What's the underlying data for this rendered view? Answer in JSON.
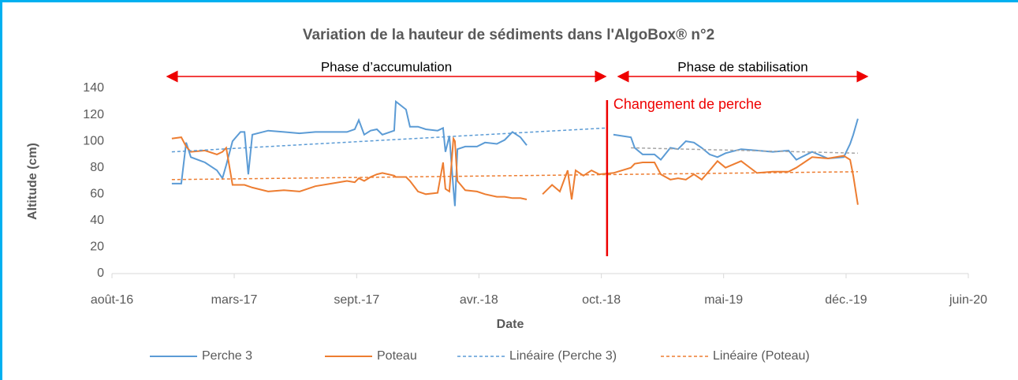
{
  "chart_data": {
    "type": "line",
    "title": "Variation de la hauteur de sédiments dans l'AlgoBox® n°2",
    "x_label": "Date",
    "y_label": "Altitude (cm)",
    "xlim": [
      2016.583,
      2020.646
    ],
    "xticks": [
      {
        "value": 2016.583,
        "label": "août-16"
      },
      {
        "value": 2017.163,
        "label": "mars-17"
      },
      {
        "value": 2017.744,
        "label": "sept.-17"
      },
      {
        "value": 2018.324,
        "label": "avr.-18"
      },
      {
        "value": 2018.905,
        "label": "oct.-18"
      },
      {
        "value": 2019.485,
        "label": "mai-19"
      },
      {
        "value": 2020.066,
        "label": "déc.-19"
      },
      {
        "value": 2020.646,
        "label": "juin-20"
      }
    ],
    "ylim": [
      0,
      140
    ],
    "yticks": [
      0,
      20,
      40,
      60,
      80,
      100,
      120,
      140
    ],
    "x": [
      2016.867,
      2016.912,
      2016.935,
      2016.957,
      2017.024,
      2017.081,
      2017.107,
      2017.125,
      2017.155,
      2017.193,
      2017.212,
      2017.23,
      2017.249,
      2017.324,
      2017.399,
      2017.473,
      2017.548,
      2017.623,
      2017.698,
      2017.735,
      2017.754,
      2017.78,
      2017.81,
      2017.84,
      2017.866,
      2017.922,
      2017.93,
      2017.978,
      2017.997,
      2018.035,
      2018.072,
      2018.128,
      2018.154,
      2018.165,
      2018.184,
      2018.203,
      2018.21,
      2018.222,
      2018.259,
      2018.315,
      2018.353,
      2018.409,
      2018.446,
      2018.483,
      2018.521,
      2018.551,
      2018.588,
      2018.626,
      2018.671,
      2018.708,
      2018.745,
      2018.764,
      2018.783,
      2018.82,
      2018.858,
      2018.895,
      2018.962,
      2019.045,
      2019.063,
      2019.101,
      2019.157,
      2019.187,
      2019.232,
      2019.269,
      2019.306,
      2019.344,
      2019.381,
      2019.419,
      2019.456,
      2019.494,
      2019.568,
      2019.643,
      2019.718,
      2019.793,
      2019.83,
      2019.905,
      2019.98,
      2020.055,
      2020.085,
      2020.1,
      2020.122
    ],
    "series": [
      {
        "name": "Perche 3",
        "color": "#5b9bd5",
        "values": [
          68,
          68,
          99,
          88,
          84,
          78,
          72,
          82,
          100,
          107,
          107,
          75,
          105,
          108,
          107,
          106,
          107,
          107,
          107,
          109,
          116,
          105,
          108,
          109,
          105,
          108,
          130,
          124,
          111,
          111,
          109,
          108,
          110,
          92,
          104,
          64,
          51,
          94,
          96,
          96,
          99,
          98,
          101,
          107,
          103,
          97,
          null,
          null,
          null,
          null,
          null,
          null,
          null,
          null,
          null,
          null,
          105,
          103,
          95,
          90,
          90,
          86,
          95,
          94,
          100,
          99,
          95,
          90,
          88,
          91,
          94,
          93,
          92,
          93,
          86,
          92,
          87,
          88,
          98,
          105,
          117
        ]
      },
      {
        "name": "Poteau",
        "color": "#ed7d31",
        "values": [
          102,
          103,
          96,
          92,
          93,
          90,
          92,
          95,
          67,
          67,
          67,
          66,
          65,
          62,
          63,
          62,
          66,
          68,
          70,
          69,
          72,
          70,
          73,
          75,
          76,
          74,
          73,
          73,
          70,
          62,
          60,
          61,
          84,
          64,
          62,
          102,
          100,
          70,
          63,
          62,
          60,
          58,
          58,
          57,
          57,
          56,
          null,
          60,
          67,
          62,
          78,
          56,
          78,
          74,
          78,
          75,
          76,
          80,
          83,
          84,
          84,
          75,
          71,
          72,
          71,
          75,
          71,
          78,
          85,
          80,
          85,
          76,
          77,
          77,
          80,
          88,
          87,
          89,
          86,
          74,
          52
        ]
      },
      {
        "name": "Linéaire (Perche 3)",
        "color": "#5b9bd5",
        "dashed": true,
        "x": [
          2016.867,
          2018.925
        ],
        "values": [
          92,
          110
        ]
      },
      {
        "name": "Linéaire (Poteau)",
        "color": "#ed7d31",
        "dashed": true,
        "x": [
          2016.867,
          2020.122
        ],
        "values": [
          71,
          77
        ]
      },
      {
        "color": "#a5a5a5",
        "dashed": true,
        "x": [
          2019.045,
          2020.122
        ],
        "values": [
          95,
          91
        ]
      }
    ],
    "annotations": [
      {
        "text": "Phase d’accumulation",
        "x_start": 2016.845,
        "x_end": 2018.925
      },
      {
        "text": "Phase de stabilisation",
        "x_start": 2018.985,
        "x_end": 2020.167
      },
      {
        "text": "Changement de perche",
        "x": 2018.932
      }
    ]
  }
}
